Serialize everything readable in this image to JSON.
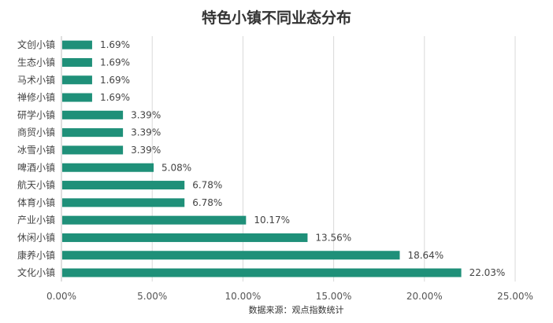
{
  "chart_data": {
    "type": "bar",
    "orientation": "horizontal",
    "title": "特色小镇不同业态分布",
    "source": "数据来源：观点指数统计",
    "categories": [
      "文创小镇",
      "生态小镇",
      "马术小镇",
      "禅修小镇",
      "研学小镇",
      "商贸小镇",
      "冰雪小镇",
      "啤酒小镇",
      "航天小镇",
      "体育小镇",
      "产业小镇",
      "休闲小镇",
      "康养小镇",
      "文化小镇"
    ],
    "values": [
      1.69,
      1.69,
      1.69,
      1.69,
      3.39,
      3.39,
      3.39,
      5.08,
      6.78,
      6.78,
      10.17,
      13.56,
      18.64,
      22.03
    ],
    "data_labels": [
      "1.69%",
      "1.69%",
      "1.69%",
      "1.69%",
      "3.39%",
      "3.39%",
      "3.39%",
      "5.08%",
      "6.78%",
      "6.78%",
      "10.17%",
      "13.56%",
      "18.64%",
      "22.03%"
    ],
    "xlim": [
      0,
      25
    ],
    "xticks": [
      0,
      5,
      10,
      15,
      20,
      25
    ],
    "xtick_labels": [
      "0.00%",
      "5.00%",
      "10.00%",
      "15.00%",
      "20.00%",
      "25.00%"
    ],
    "grid": "vertical",
    "bar_color": "#1f9079"
  }
}
